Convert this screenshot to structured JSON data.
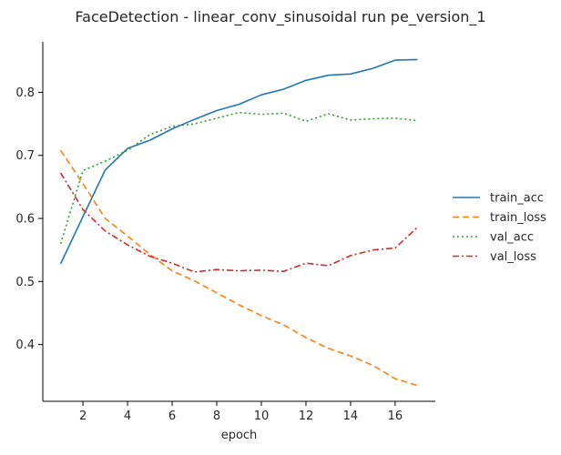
{
  "chart_data": {
    "type": "line",
    "title": "FaceDetection - linear_conv_sinusoidal run pe_version_1",
    "xlabel": "epoch",
    "ylabel": "",
    "x": [
      1,
      2,
      3,
      4,
      5,
      6,
      7,
      8,
      9,
      10,
      11,
      12,
      13,
      14,
      15,
      16,
      17
    ],
    "xlim": [
      0.2,
      17.8
    ],
    "ylim": [
      0.31,
      0.88
    ],
    "xticks": [
      2,
      4,
      6,
      8,
      10,
      12,
      14,
      16
    ],
    "yticks": [
      0.4,
      0.5,
      0.6,
      0.7,
      0.8
    ],
    "ytick_labels": [
      "0.4",
      "0.5",
      "0.6",
      "0.7",
      "0.8"
    ],
    "grid": false,
    "legend_position": "right",
    "series": [
      {
        "name": "train_acc",
        "color": "#1f77b4",
        "dash": "",
        "values": [
          0.528,
          0.603,
          0.677,
          0.711,
          0.724,
          0.742,
          0.757,
          0.771,
          0.781,
          0.796,
          0.805,
          0.819,
          0.827,
          0.829,
          0.838,
          0.851,
          0.852
        ]
      },
      {
        "name": "train_loss",
        "color": "#ff7f0e",
        "dash": "7,4",
        "values": [
          0.708,
          0.655,
          0.6,
          0.572,
          0.543,
          0.517,
          0.501,
          0.482,
          0.463,
          0.446,
          0.431,
          0.411,
          0.394,
          0.382,
          0.367,
          0.346,
          0.335
        ]
      },
      {
        "name": "val_acc",
        "color": "#2ca02c",
        "dash": "2,3",
        "values": [
          0.56,
          0.676,
          0.691,
          0.708,
          0.733,
          0.746,
          0.75,
          0.759,
          0.768,
          0.765,
          0.767,
          0.754,
          0.766,
          0.756,
          0.758,
          0.759,
          0.755
        ]
      },
      {
        "name": "val_loss",
        "color": "#d62728",
        "dash": "7,3,2,3",
        "values": [
          0.672,
          0.614,
          0.58,
          0.558,
          0.54,
          0.529,
          0.515,
          0.519,
          0.517,
          0.518,
          0.516,
          0.529,
          0.525,
          0.541,
          0.55,
          0.553,
          0.586
        ]
      }
    ]
  }
}
